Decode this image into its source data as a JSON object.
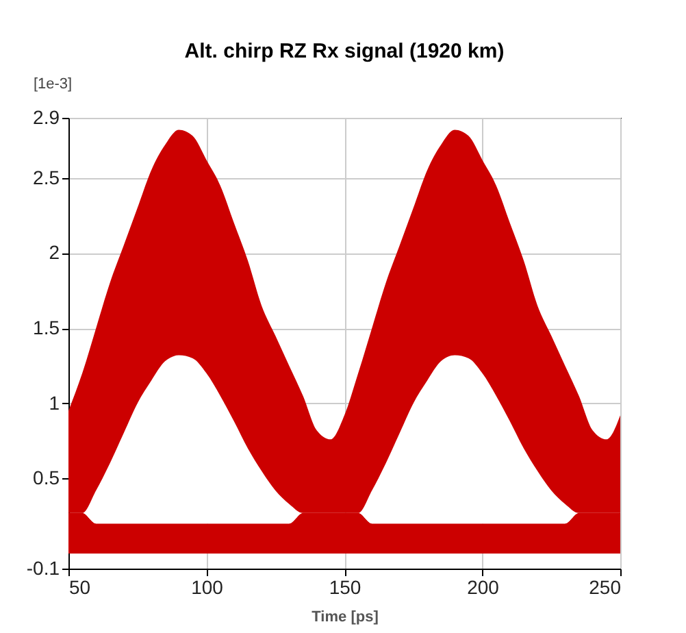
{
  "chart_data": {
    "type": "area",
    "stacked": true,
    "title": "Alt. chirp RZ Rx signal (1920 km)",
    "xlabel": "Time [ps]",
    "ylabel": "[1e-3]",
    "x": [
      50,
      55,
      60,
      65,
      70,
      75,
      80,
      85,
      90,
      95,
      100,
      105,
      110,
      115,
      120,
      125,
      130,
      135,
      140,
      145,
      150,
      155,
      160,
      165,
      170,
      175,
      180,
      185,
      190,
      195,
      200,
      205,
      210,
      215,
      220,
      225,
      230,
      235,
      240,
      245,
      250
    ],
    "series": [
      {
        "color": "#cc0000",
        "values": [
          0.27,
          0.27,
          0.2,
          0.2,
          0.2,
          0.2,
          0.2,
          0.2,
          0.2,
          0.2,
          0.2,
          0.2,
          0.2,
          0.2,
          0.2,
          0.2,
          0.2,
          0.27,
          0.27,
          0.27,
          0.27,
          0.27,
          0.2,
          0.2,
          0.2,
          0.2,
          0.2,
          0.2,
          0.2,
          0.2,
          0.2,
          0.2,
          0.2,
          0.2,
          0.2,
          0.2,
          0.2,
          0.27,
          0.27,
          0.27,
          0.27
        ]
      },
      {
        "color": "#ffffff",
        "values": [
          0,
          0,
          0.22,
          0.4,
          0.6,
          0.8,
          0.95,
          1.08,
          1.12,
          1.1,
          1.0,
          0.85,
          0.68,
          0.5,
          0.35,
          0.22,
          0.13,
          0,
          0,
          0,
          0,
          0,
          0.22,
          0.4,
          0.6,
          0.8,
          0.95,
          1.08,
          1.12,
          1.1,
          1.0,
          0.85,
          0.68,
          0.5,
          0.35,
          0.22,
          0.13,
          0,
          0,
          0,
          0
        ]
      },
      {
        "color": "#cc0000",
        "values": [
          0.68,
          0.93,
          1.08,
          1.2,
          1.25,
          1.3,
          1.4,
          1.44,
          1.5,
          1.48,
          1.42,
          1.4,
          1.32,
          1.25,
          1.1,
          1.03,
          0.92,
          0.78,
          0.55,
          0.49,
          0.65,
          0.93,
          1.08,
          1.2,
          1.25,
          1.3,
          1.4,
          1.44,
          1.5,
          1.48,
          1.42,
          1.4,
          1.32,
          1.25,
          1.1,
          1.03,
          0.92,
          0.78,
          0.55,
          0.49,
          0.65
        ]
      }
    ],
    "xlim": [
      50,
      250
    ],
    "xticks": [
      50,
      100,
      150,
      200,
      250
    ],
    "ylim": [
      -0.1,
      2.9
    ],
    "yticks": [
      -0.1,
      0.5,
      {
        "value": 1,
        "label": "1"
      },
      1.5,
      {
        "value": 2,
        "label": "2"
      },
      2.5,
      2.9
    ],
    "grid": true
  }
}
